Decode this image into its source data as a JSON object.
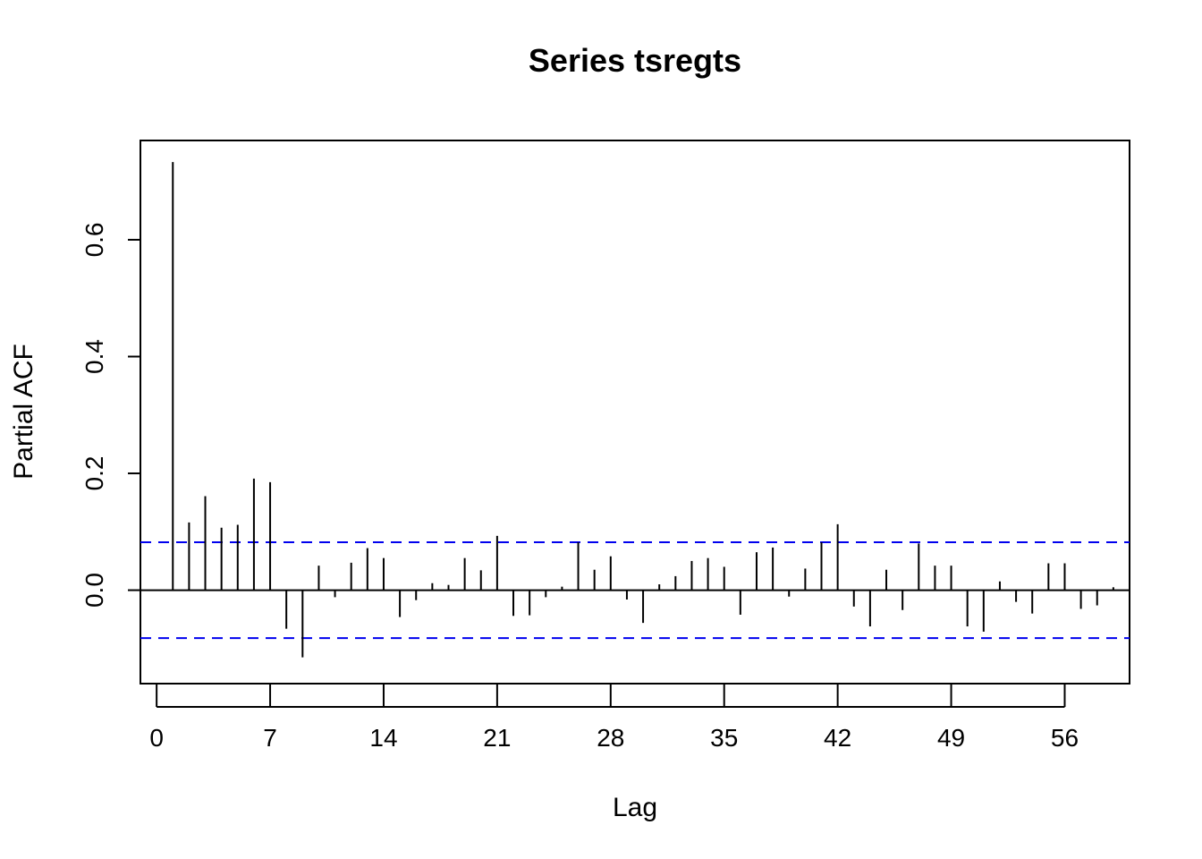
{
  "chart_data": {
    "type": "bar",
    "title": "Series  tsregts",
    "xlabel": "Lag",
    "ylabel": "Partial ACF",
    "xlim": [
      -1,
      60
    ],
    "ylim": [
      -0.16,
      0.77
    ],
    "x_ticks": [
      0,
      7,
      14,
      21,
      28,
      35,
      42,
      49,
      56
    ],
    "y_ticks": [
      "0.0",
      "0.2",
      "0.4",
      "0.6"
    ],
    "confidence_bound": 0.082,
    "colors": {
      "bars": "#000000",
      "zero_line": "#000000",
      "confidence": "#0000ee"
    },
    "grid": false,
    "lags": [
      1,
      2,
      3,
      4,
      5,
      6,
      7,
      8,
      9,
      10,
      11,
      12,
      13,
      14,
      15,
      16,
      17,
      18,
      19,
      20,
      21,
      22,
      23,
      24,
      25,
      26,
      27,
      28,
      29,
      30,
      31,
      32,
      33,
      34,
      35,
      36,
      37,
      38,
      39,
      40,
      41,
      42,
      43,
      44,
      45,
      46,
      47,
      48,
      49,
      50,
      51,
      52,
      53,
      54,
      55,
      56,
      57,
      58,
      59,
      60
    ],
    "values": [
      0.733,
      0.116,
      0.161,
      0.107,
      0.112,
      0.191,
      0.185,
      -0.066,
      -0.115,
      0.042,
      -0.012,
      0.047,
      0.072,
      0.055,
      -0.046,
      -0.017,
      0.012,
      0.009,
      0.055,
      0.034,
      0.093,
      -0.044,
      -0.043,
      -0.012,
      0.006,
      0.082,
      0.035,
      0.058,
      -0.016,
      -0.056,
      0.01,
      0.024,
      0.05,
      0.055,
      0.04,
      -0.042,
      0.065,
      0.073,
      -0.011,
      0.037,
      0.082,
      0.113,
      -0.028,
      -0.062,
      0.035,
      -0.034,
      0.08,
      0.042,
      0.042,
      -0.062,
      -0.071,
      0.015,
      -0.02,
      -0.04,
      0.046,
      0.046,
      -0.032,
      -0.026,
      0.005,
      -0.016
    ]
  }
}
